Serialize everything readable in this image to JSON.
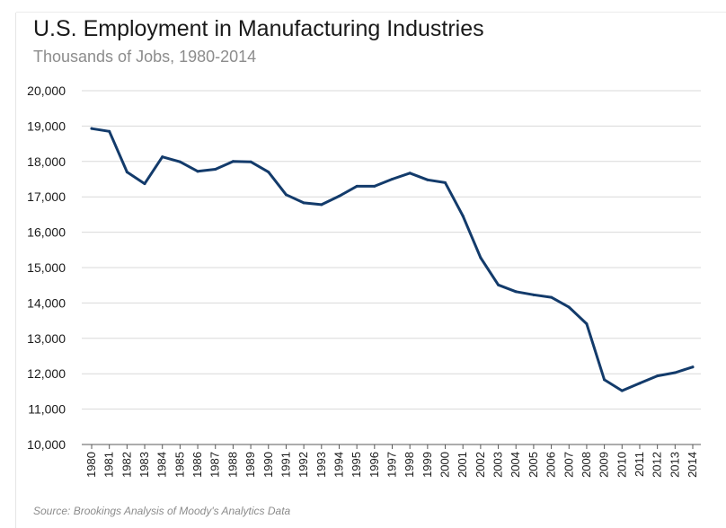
{
  "title": "U.S. Employment in Manufacturing Industries",
  "subtitle": "Thousands of Jobs, 1980-2014",
  "source": "Source: Brookings Analysis of Moody's Analytics Data",
  "colors": {
    "line": "#133b6b",
    "grid": "#d9d9d9",
    "axis": "#595959"
  },
  "chart_data": {
    "type": "line",
    "title": "U.S. Employment in Manufacturing Industries",
    "subtitle": "Thousands of Jobs, 1980-2014",
    "xlabel": "",
    "ylabel": "",
    "ylim": [
      10000,
      20000
    ],
    "yticks": [
      10000,
      11000,
      12000,
      13000,
      14000,
      15000,
      16000,
      17000,
      18000,
      19000,
      20000
    ],
    "ytick_labels": [
      "10,000",
      "11,000",
      "12,000",
      "13,000",
      "14,000",
      "15,000",
      "16,000",
      "17,000",
      "18,000",
      "19,000",
      "20,000"
    ],
    "grid": true,
    "legend": "none",
    "categories": [
      "1980",
      "1981",
      "1982",
      "1983",
      "1984",
      "1985",
      "1986",
      "1987",
      "1988",
      "1989",
      "1990",
      "1991",
      "1992",
      "1993",
      "1994",
      "1995",
      "1996",
      "1997",
      "1998",
      "1999",
      "2000",
      "2001",
      "2002",
      "2003",
      "2004",
      "2005",
      "2006",
      "2007",
      "2008",
      "2009",
      "2010",
      "2011",
      "2012",
      "2013",
      "2014"
    ],
    "series": [
      {
        "values": [
          18930,
          18850,
          17700,
          17370,
          18130,
          17990,
          17720,
          17780,
          18000,
          17990,
          17700,
          17060,
          16830,
          16780,
          17020,
          17300,
          17300,
          17500,
          17670,
          17480,
          17400,
          16460,
          15280,
          14510,
          14320,
          14230,
          14160,
          13880,
          13410,
          11830,
          11520,
          11730,
          11940,
          12030,
          12190
        ]
      }
    ]
  }
}
